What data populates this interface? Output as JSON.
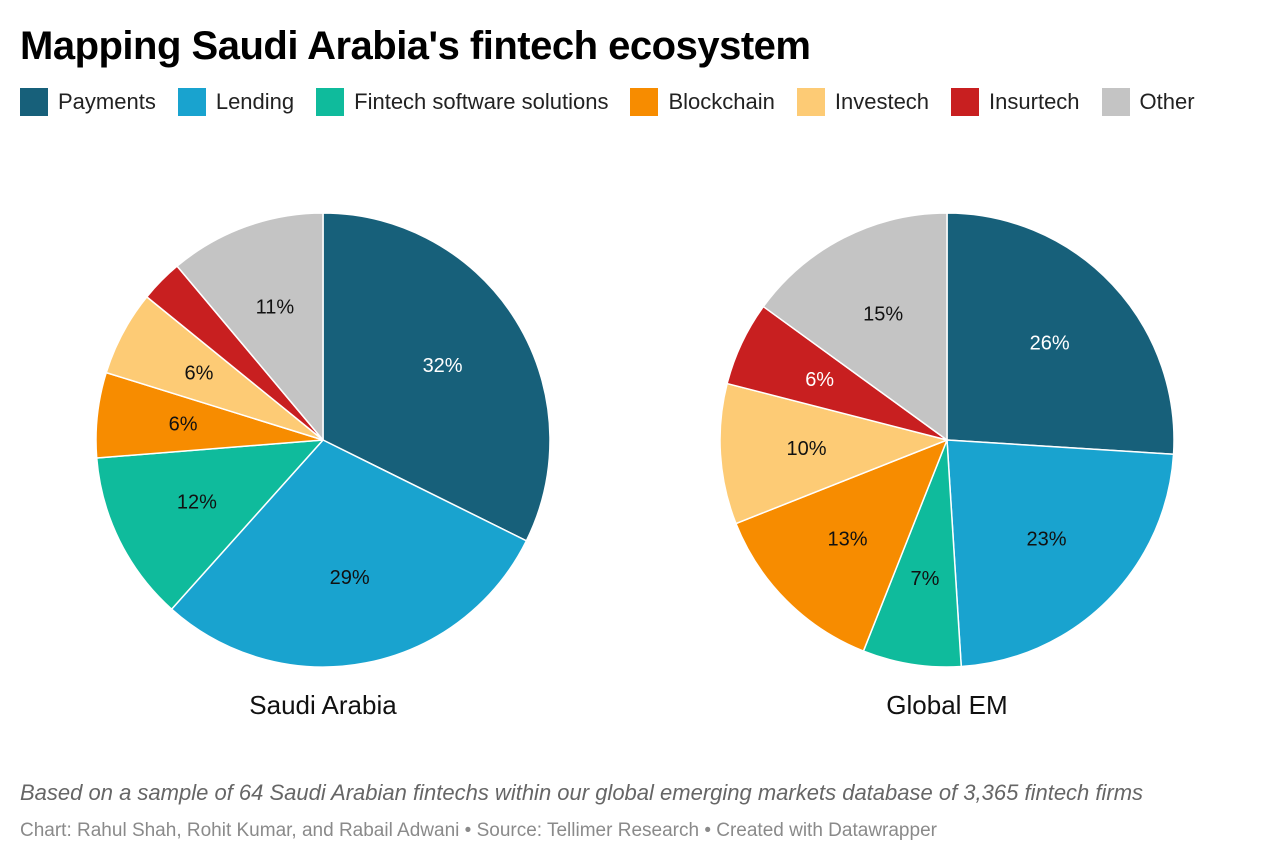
{
  "title": "Mapping Saudi Arabia's fintech ecosystem",
  "colors": {
    "Payments": "#17607a",
    "Lending": "#19a3cf",
    "Fintech software solutions": "#0fbb9c",
    "Blockchain": "#f78c00",
    "Investech": "#fdcb75",
    "Insurtech": "#c81f20",
    "Other": "#c4c4c4"
  },
  "legend": [
    {
      "label": "Payments",
      "color": "#17607a"
    },
    {
      "label": "Lending",
      "color": "#19a3cf"
    },
    {
      "label": "Fintech software solutions",
      "color": "#0fbb9c"
    },
    {
      "label": "Blockchain",
      "color": "#f78c00"
    },
    {
      "label": "Investech",
      "color": "#fdcb75"
    },
    {
      "label": "Insurtech",
      "color": "#c81f20"
    },
    {
      "label": "Other",
      "color": "#c4c4c4"
    }
  ],
  "chart_data": [
    {
      "type": "pie",
      "title": "Saudi Arabia",
      "slices": [
        {
          "label": "Payments",
          "value": 32,
          "text": "32%"
        },
        {
          "label": "Lending",
          "value": 29,
          "text": "29%"
        },
        {
          "label": "Fintech software solutions",
          "value": 12,
          "text": "12%"
        },
        {
          "label": "Blockchain",
          "value": 6,
          "text": "6%"
        },
        {
          "label": "Investech",
          "value": 6,
          "text": "6%"
        },
        {
          "label": "Insurtech",
          "value": 3,
          "text": ""
        },
        {
          "label": "Other",
          "value": 11,
          "text": "11%"
        }
      ]
    },
    {
      "type": "pie",
      "title": "Global EM",
      "slices": [
        {
          "label": "Payments",
          "value": 26,
          "text": "26%"
        },
        {
          "label": "Lending",
          "value": 23,
          "text": "23%"
        },
        {
          "label": "Fintech software solutions",
          "value": 7,
          "text": "7%"
        },
        {
          "label": "Blockchain",
          "value": 13,
          "text": "13%"
        },
        {
          "label": "Investech",
          "value": 10,
          "text": "10%"
        },
        {
          "label": "Insurtech",
          "value": 6,
          "text": "6%"
        },
        {
          "label": "Other",
          "value": 15,
          "text": "15%"
        }
      ]
    }
  ],
  "notes": "Based on a sample of 64 Saudi Arabian fintechs within our global emerging markets database of 3,365 fintech firms",
  "footer": "Chart: Rahul Shah, Rohit Kumar, and Rabail Adwani • Source: Tellimer Research • Created with Datawrapper"
}
